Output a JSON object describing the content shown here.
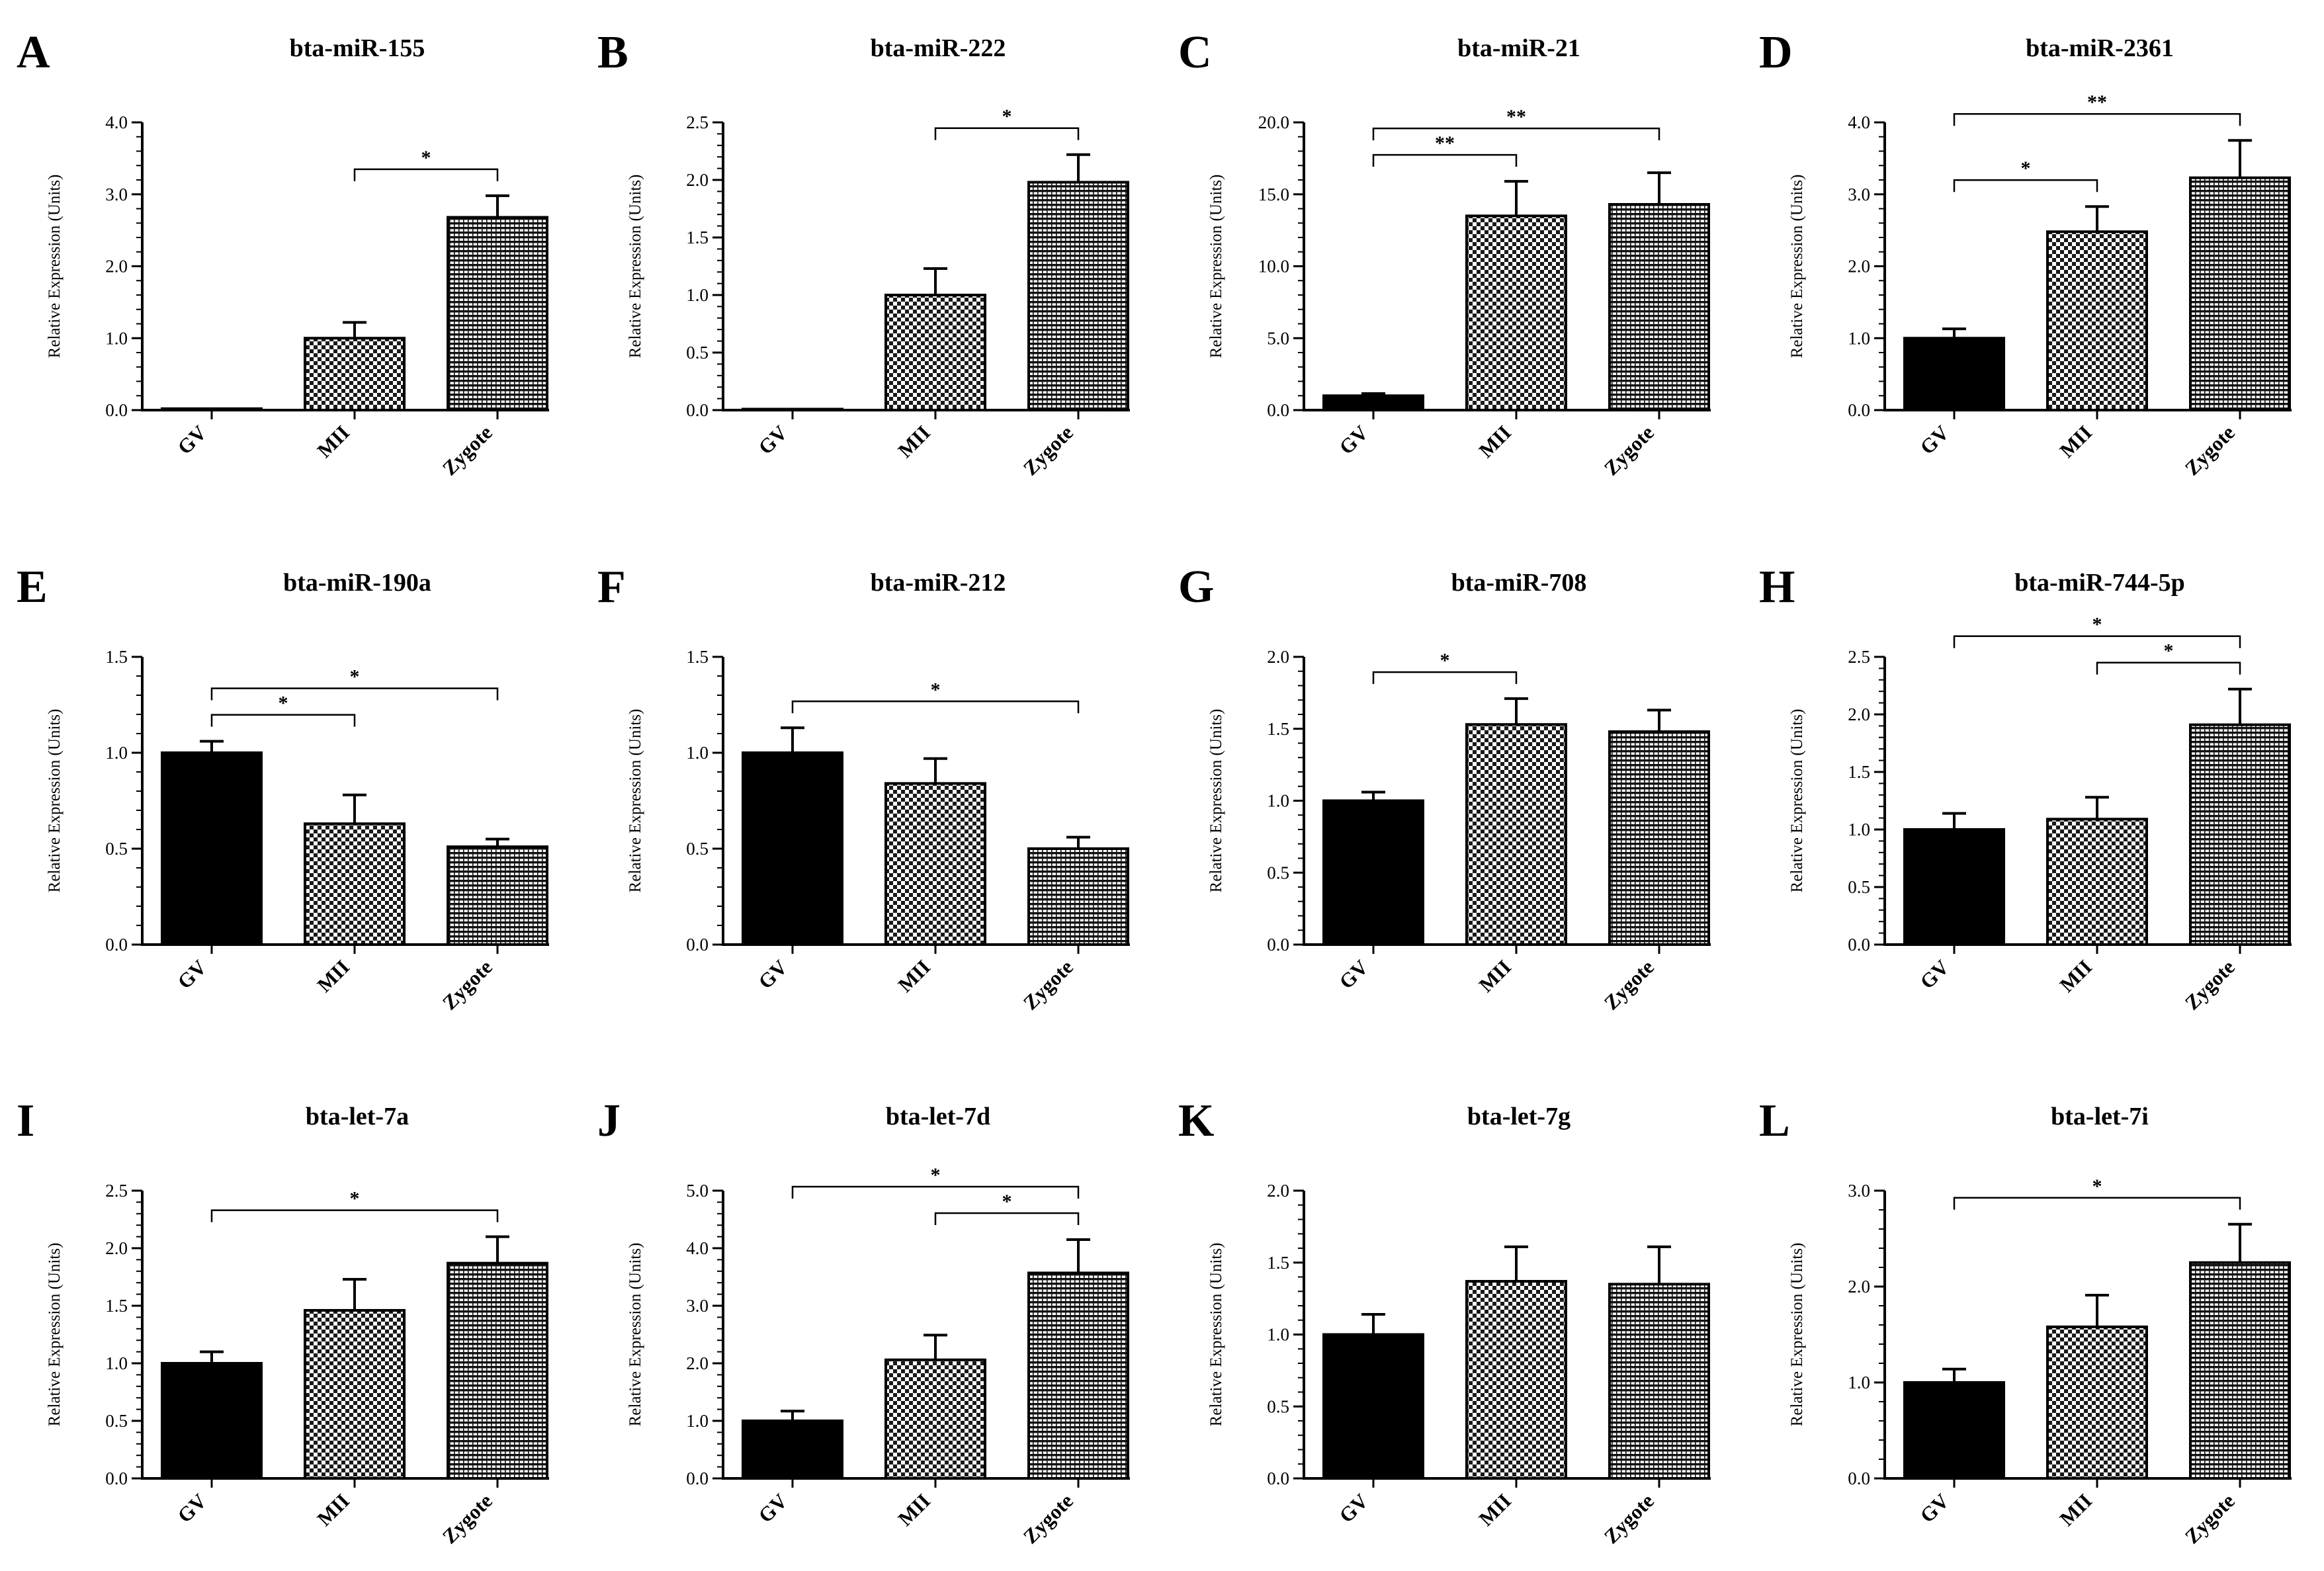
{
  "figure": {
    "groups": [
      "GV",
      "MII",
      "Zygote"
    ],
    "ylabel": "Relative Expression (Units)",
    "colors": {
      "ink": "#000000",
      "background": "#ffffff"
    }
  },
  "chart_data": [
    {
      "panel": "A",
      "title": "bta-miR-155",
      "type": "bar",
      "categories": [
        "GV",
        "MII",
        "Zygote"
      ],
      "values": [
        0.02,
        1.0,
        2.68
      ],
      "errors": [
        0.0,
        0.22,
        0.3
      ],
      "ylim": [
        0,
        4
      ],
      "yticks": [
        "0.0",
        "1.0",
        "2.0",
        "3.0",
        "4.0"
      ],
      "ylabel": "Relative Expression (Units)",
      "significance": [
        {
          "from": "MII",
          "to": "Zygote",
          "label": "*"
        }
      ]
    },
    {
      "panel": "B",
      "title": "bta-miR-222",
      "type": "bar",
      "categories": [
        "GV",
        "MII",
        "Zygote"
      ],
      "values": [
        0.0,
        1.0,
        1.98
      ],
      "errors": [
        0.0,
        0.23,
        0.24
      ],
      "ylim": [
        0,
        2.5
      ],
      "yticks": [
        "0.0",
        "0.5",
        "1.0",
        "1.5",
        "2.0",
        "2.5"
      ],
      "ylabel": "Relative Expression (Units)",
      "significance": [
        {
          "from": "MII",
          "to": "Zygote",
          "label": "*"
        }
      ]
    },
    {
      "panel": "C",
      "title": "bta-miR-21",
      "type": "bar",
      "categories": [
        "GV",
        "MII",
        "Zygote"
      ],
      "values": [
        1.0,
        13.5,
        14.3
      ],
      "errors": [
        0.15,
        2.4,
        2.2
      ],
      "ylim": [
        0,
        20
      ],
      "yticks": [
        "0.0",
        "5.0",
        "10.0",
        "15.0",
        "20.0"
      ],
      "ylabel": "Relative Expression (Units)",
      "significance": [
        {
          "from": "GV",
          "to": "MII",
          "label": "**"
        },
        {
          "from": "GV",
          "to": "Zygote",
          "label": "**"
        }
      ]
    },
    {
      "panel": "D",
      "title": "bta-miR-2361",
      "type": "bar",
      "categories": [
        "GV",
        "MII",
        "Zygote"
      ],
      "values": [
        1.0,
        2.48,
        3.23
      ],
      "errors": [
        0.13,
        0.35,
        0.52
      ],
      "ylim": [
        0,
        4
      ],
      "yticks": [
        "0.0",
        "1.0",
        "2.0",
        "3.0",
        "4.0"
      ],
      "ylabel": "Relative Expression (Units)",
      "significance": [
        {
          "from": "GV",
          "to": "MII",
          "label": "*"
        },
        {
          "from": "GV",
          "to": "Zygote",
          "label": "**"
        }
      ]
    },
    {
      "panel": "E",
      "title": "bta-miR-190a",
      "type": "bar",
      "categories": [
        "GV",
        "MII",
        "Zygote"
      ],
      "values": [
        1.0,
        0.63,
        0.51
      ],
      "errors": [
        0.06,
        0.15,
        0.04
      ],
      "ylim": [
        0,
        1.5
      ],
      "yticks": [
        "0.0",
        "0.5",
        "1.0",
        "1.5"
      ],
      "ylabel": "Relative Expression (Units)",
      "significance": [
        {
          "from": "GV",
          "to": "MII",
          "label": "*"
        },
        {
          "from": "GV",
          "to": "Zygote",
          "label": "*"
        }
      ]
    },
    {
      "panel": "F",
      "title": "bta-miR-212",
      "type": "bar",
      "categories": [
        "GV",
        "MII",
        "Zygote"
      ],
      "values": [
        1.0,
        0.84,
        0.5
      ],
      "errors": [
        0.13,
        0.13,
        0.06
      ],
      "ylim": [
        0,
        1.5
      ],
      "yticks": [
        "0.0",
        "0.5",
        "1.0",
        "1.5"
      ],
      "ylabel": "Relative Expression (Units)",
      "significance": [
        {
          "from": "GV",
          "to": "Zygote",
          "label": "*"
        }
      ]
    },
    {
      "panel": "G",
      "title": "bta-miR-708",
      "type": "bar",
      "categories": [
        "GV",
        "MII",
        "Zygote"
      ],
      "values": [
        1.0,
        1.53,
        1.48
      ],
      "errors": [
        0.06,
        0.18,
        0.15
      ],
      "ylim": [
        0,
        2
      ],
      "yticks": [
        "0.0",
        "0.5",
        "1.0",
        "1.5",
        "2.0"
      ],
      "ylabel": "Relative Expression (Units)",
      "significance": [
        {
          "from": "GV",
          "to": "MII",
          "label": "*"
        }
      ]
    },
    {
      "panel": "H",
      "title": "bta-miR-744-5p",
      "type": "bar",
      "categories": [
        "GV",
        "MII",
        "Zygote"
      ],
      "values": [
        1.0,
        1.09,
        1.91
      ],
      "errors": [
        0.14,
        0.19,
        0.31
      ],
      "ylim": [
        0,
        2.5
      ],
      "yticks": [
        "0.0",
        "0.5",
        "1.0",
        "1.5",
        "2.0",
        "2.5"
      ],
      "ylabel": "Relative Expression (Units)",
      "significance": [
        {
          "from": "MII",
          "to": "Zygote",
          "label": "*"
        },
        {
          "from": "GV",
          "to": "Zygote",
          "label": "*"
        }
      ]
    },
    {
      "panel": "I",
      "title": "bta-let-7a",
      "type": "bar",
      "categories": [
        "GV",
        "MII",
        "Zygote"
      ],
      "values": [
        1.0,
        1.46,
        1.87
      ],
      "errors": [
        0.1,
        0.27,
        0.23
      ],
      "ylim": [
        0,
        2.5
      ],
      "yticks": [
        "0.0",
        "0.5",
        "1.0",
        "1.5",
        "2.0",
        "2.5"
      ],
      "ylabel": "Relative Expression (Units)",
      "significance": [
        {
          "from": "GV",
          "to": "Zygote",
          "label": "*"
        }
      ]
    },
    {
      "panel": "J",
      "title": "bta-let-7d",
      "type": "bar",
      "categories": [
        "GV",
        "MII",
        "Zygote"
      ],
      "values": [
        1.0,
        2.06,
        3.57
      ],
      "errors": [
        0.17,
        0.43,
        0.58
      ],
      "ylim": [
        0,
        5
      ],
      "yticks": [
        "0.0",
        "1.0",
        "2.0",
        "3.0",
        "4.0",
        "5.0"
      ],
      "ylabel": "Relative Expression (Units)",
      "significance": [
        {
          "from": "MII",
          "to": "Zygote",
          "label": "*"
        },
        {
          "from": "GV",
          "to": "Zygote",
          "label": "*"
        }
      ]
    },
    {
      "panel": "K",
      "title": "bta-let-7g",
      "type": "bar",
      "categories": [
        "GV",
        "MII",
        "Zygote"
      ],
      "values": [
        1.0,
        1.37,
        1.35
      ],
      "errors": [
        0.14,
        0.24,
        0.26
      ],
      "ylim": [
        0,
        2
      ],
      "yticks": [
        "0.0",
        "0.5",
        "1.0",
        "1.5",
        "2.0"
      ],
      "ylabel": "Relative Expression (Units)",
      "significance": []
    },
    {
      "panel": "L",
      "title": "bta-let-7i",
      "type": "bar",
      "categories": [
        "GV",
        "MII",
        "Zygote"
      ],
      "values": [
        1.0,
        1.58,
        2.25
      ],
      "errors": [
        0.14,
        0.33,
        0.4
      ],
      "ylim": [
        0,
        3
      ],
      "yticks": [
        "0.0",
        "1.0",
        "2.0",
        "3.0"
      ],
      "ylabel": "Relative Expression (Units)",
      "significance": [
        {
          "from": "GV",
          "to": "Zygote",
          "label": "*"
        }
      ]
    }
  ]
}
